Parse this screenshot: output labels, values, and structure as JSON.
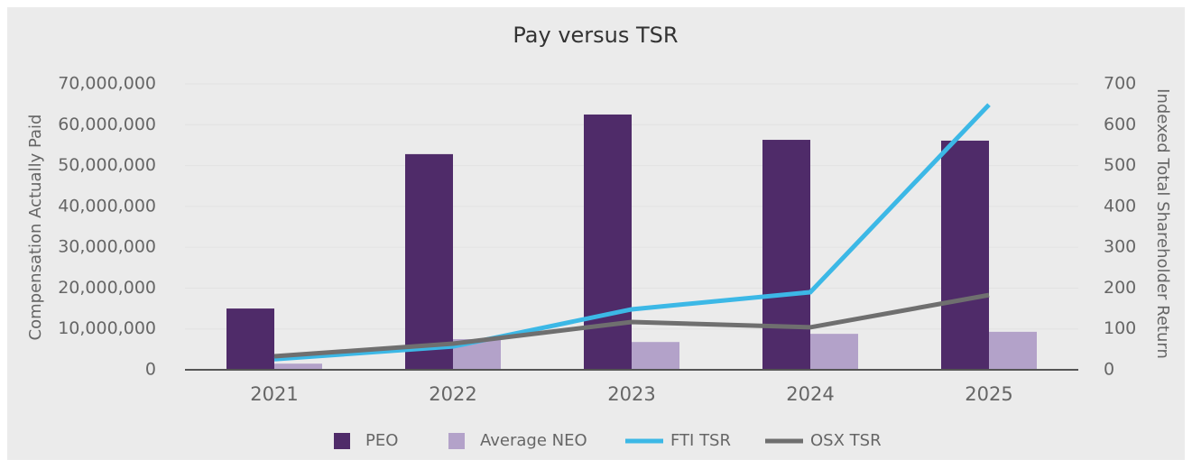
{
  "chart_data": {
    "type": "bar",
    "title": "Pay versus TSR",
    "y_label": "Compensation Actually Paid",
    "y2_label": "Indexed Total Shareholder Return",
    "categories": [
      "2021",
      "2022",
      "2023",
      "2024",
      "2025"
    ],
    "series": [
      {
        "name": "PEO",
        "type": "bar",
        "color": "#4f2b69",
        "values": [
          15000000,
          52800000,
          62500000,
          56300000,
          56100000
        ]
      },
      {
        "name": "Average NEO",
        "type": "bar",
        "color": "#b3a2c9",
        "values": [
          1500000,
          7500000,
          6800000,
          8800000,
          9300000
        ]
      },
      {
        "name": "FTI TSR",
        "type": "line",
        "axis": "y2",
        "color": "#3cb8e6",
        "values": [
          26,
          57,
          148,
          190,
          649
        ]
      },
      {
        "name": "OSX TSR",
        "type": "line",
        "axis": "y2",
        "color": "#6f6f6f",
        "values": [
          33,
          64,
          117,
          104,
          183
        ]
      }
    ],
    "ylim": [
      0,
      70000000
    ],
    "yticks": [
      0,
      {
        "value": 10000000,
        "label": "10,000,000"
      },
      {
        "value": 20000000,
        "label": "20,000,000"
      },
      {
        "value": 30000000,
        "label": "30,000,000"
      },
      {
        "value": 40000000,
        "label": "40,000,000"
      },
      {
        "value": 50000000,
        "label": "50,000,000"
      },
      {
        "value": 60000000,
        "label": "60,000,000"
      },
      {
        "value": 70000000,
        "label": "70,000,000"
      }
    ],
    "y2lim": [
      0,
      700
    ],
    "y2ticks": [
      0,
      100,
      200,
      300,
      400,
      500,
      600,
      700
    ],
    "grid": true,
    "legend": "bottom"
  }
}
